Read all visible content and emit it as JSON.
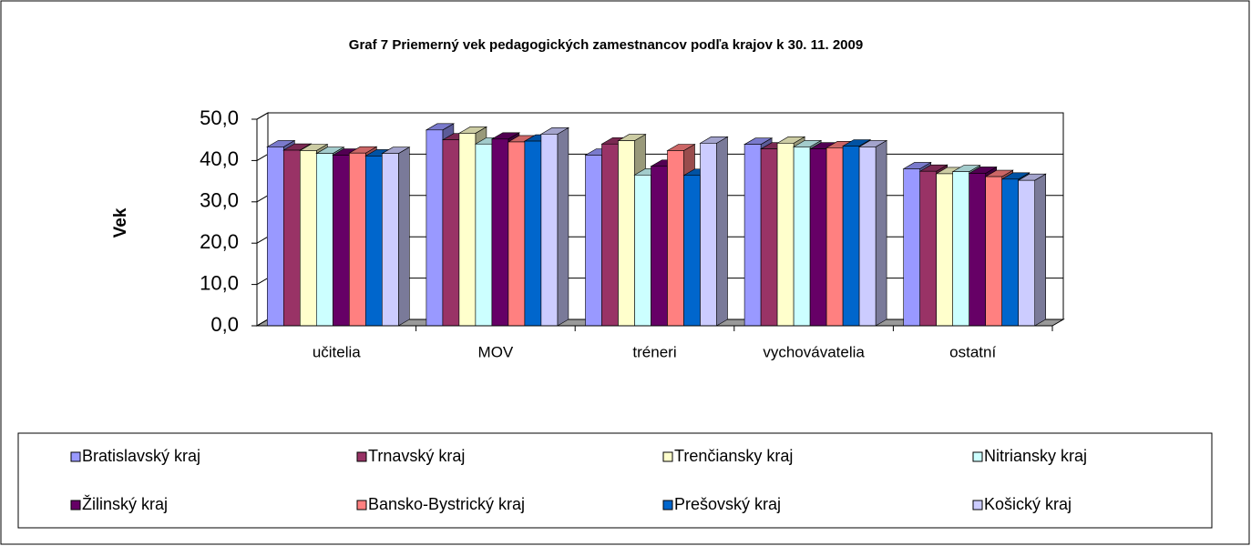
{
  "chart_data": {
    "type": "bar3d",
    "title": "Graf 7 Priemerný vek pedagogických zamestnancov podľa krajov k 30. 11. 2009",
    "y_label": "Vek",
    "categories": [
      "učitelia",
      "MOV",
      "tréneri",
      "vychovávatelia",
      "ostatní"
    ],
    "ylim": [
      0,
      50
    ],
    "yticks": [
      {
        "value": 0,
        "label": "0,0"
      },
      {
        "value": 10,
        "label": "10,0"
      },
      {
        "value": 20,
        "label": "20,0"
      },
      {
        "value": 30,
        "label": "30,0"
      },
      {
        "value": 40,
        "label": "40,0"
      },
      {
        "value": 50,
        "label": "50,0"
      }
    ],
    "grid": true,
    "legend": "bottom",
    "series": [
      {
        "name": "Bratislavský kraj",
        "color": "#9999ff",
        "values": [
          43.3,
          47.4,
          41.3,
          43.9,
          38.0
        ]
      },
      {
        "name": "Trnavský kraj",
        "color": "#993366",
        "values": [
          42.5,
          45.0,
          44.0,
          42.8,
          37.4
        ]
      },
      {
        "name": "Trenčiansky kraj",
        "color": "#ffffcc",
        "values": [
          42.4,
          46.6,
          44.8,
          44.2,
          36.8
        ]
      },
      {
        "name": "Nitriansky kraj",
        "color": "#ccffff",
        "values": [
          41.7,
          44.0,
          36.5,
          43.3,
          37.3
        ]
      },
      {
        "name": "Žilinský kraj",
        "color": "#660066",
        "values": [
          41.3,
          45.2,
          38.6,
          42.8,
          36.9
        ]
      },
      {
        "name": "Bansko-Bystrický kraj",
        "color": "#ff8080",
        "values": [
          41.8,
          44.5,
          42.4,
          43.1,
          36.1
        ]
      },
      {
        "name": "Prešovský kraj",
        "color": "#0066cc",
        "values": [
          41.1,
          44.7,
          36.4,
          43.5,
          35.5
        ]
      },
      {
        "name": "Košický kraj",
        "color": "#ccccff",
        "values": [
          41.7,
          46.4,
          44.2,
          43.3,
          35.2
        ]
      }
    ]
  }
}
